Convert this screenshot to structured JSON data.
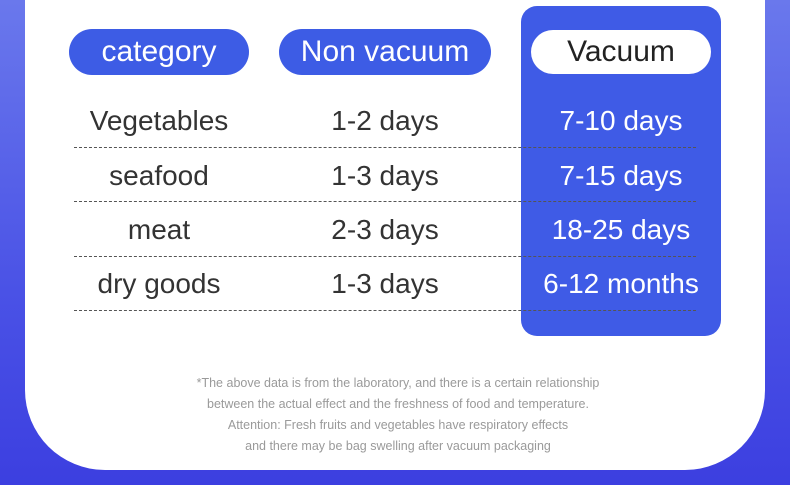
{
  "table": {
    "headers": [
      "category",
      "Non vacuum",
      "Vacuum"
    ],
    "rows": [
      [
        "Vegetables",
        "1-2 days",
        "7-10 days"
      ],
      [
        "seafood",
        "1-3 days",
        "7-15 days"
      ],
      [
        "meat",
        "2-3 days",
        "18-25 days"
      ],
      [
        "dry goods",
        "1-3 days",
        "6-12 months"
      ]
    ]
  },
  "footnote": [
    "*The above data is from the laboratory, and there is a certain relationship",
    "between the actual effect and the freshness of food and temperature.",
    "Attention: Fresh fruits and vegetables have respiratory effects",
    "and there may be bag swelling after vacuum packaging"
  ]
}
